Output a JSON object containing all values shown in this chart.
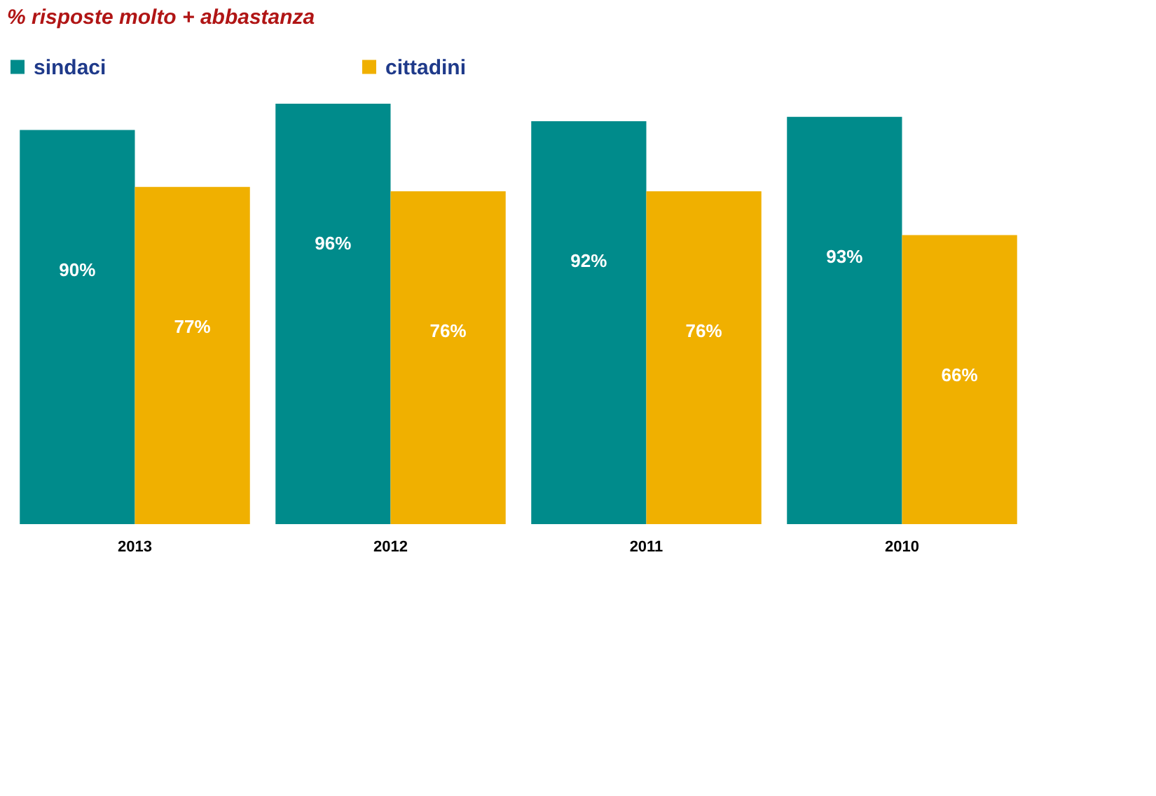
{
  "chart_data": {
    "type": "bar",
    "title": "% risposte molto + abbastanza",
    "categories": [
      "2013",
      "2012",
      "2011",
      "2010"
    ],
    "series": [
      {
        "name": "sindaci",
        "color": "#008b8b",
        "values": [
          90,
          96,
          92,
          93
        ],
        "value_labels": [
          "90%",
          "96%",
          "92%",
          "93%"
        ]
      },
      {
        "name": "cittadini",
        "color": "#f0b000",
        "values": [
          77,
          76,
          76,
          66
        ],
        "value_labels": [
          "77%",
          "76%",
          "76%",
          "66%"
        ]
      }
    ],
    "legend": "top",
    "grid": false
  }
}
